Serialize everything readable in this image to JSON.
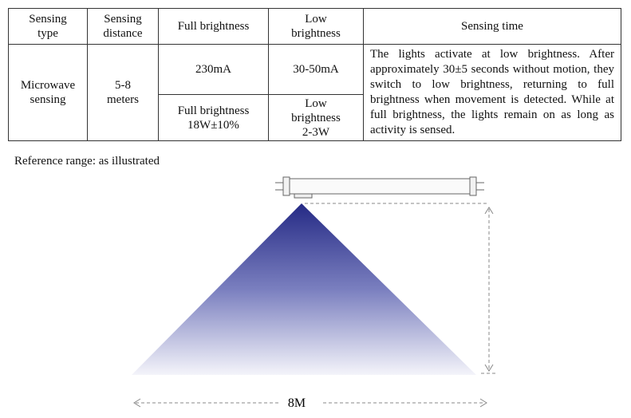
{
  "table": {
    "header": [
      [
        "Sensing",
        "type"
      ],
      [
        "Sensing",
        "distance"
      ],
      [
        "Full brightness"
      ],
      [
        "Low",
        "brightness"
      ],
      [
        "Sensing time"
      ]
    ],
    "rows": [
      [
        [
          "Microwave",
          "sensing"
        ],
        [
          "5-8",
          "meters"
        ],
        [
          "230mA"
        ],
        [
          "30-50mA"
        ],
        "The lights activate at low brightness. After approximately 30±5 seconds without motion, they switch to low brightness, returning to full brightness when movement is detected. While at full brightness, the lights remain on as long as activity is sensed."
      ],
      [
        [
          "Full brightness",
          "18W±10%"
        ],
        [
          "Low",
          "brightness",
          "2-3W"
        ]
      ]
    ]
  },
  "caption": "Reference range: as illustrated",
  "diagram": {
    "width_label": "8M"
  }
}
